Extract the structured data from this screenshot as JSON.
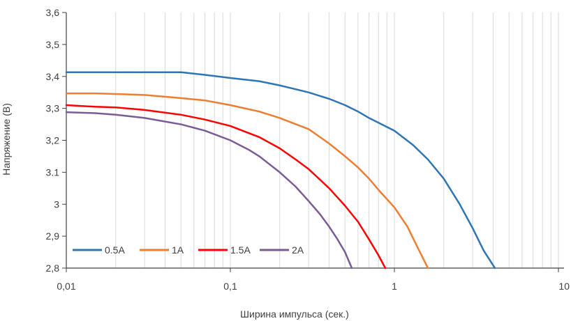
{
  "chart_data": {
    "type": "line",
    "x_scale": "log",
    "xlim": [
      0.01,
      10
    ],
    "ylim": [
      2.8,
      3.6
    ],
    "xlabel": "Ширина импульса (сек.)",
    "ylabel": "Напряжение (В)",
    "x_tick_labels": [
      "0,01",
      "0,1",
      "1",
      "10"
    ],
    "y_tick_labels": [
      "2,8",
      "2,9",
      "3",
      "3.1",
      "3,2",
      "3,3",
      "3,4",
      "3,5",
      "3,6"
    ],
    "grid": "vertical log grid lines",
    "legend_position": "bottom-left",
    "series": [
      {
        "name": "0.5A",
        "color": "#2e75b6",
        "points": [
          [
            0.01,
            3.413
          ],
          [
            0.02,
            3.413
          ],
          [
            0.05,
            3.413
          ],
          [
            0.07,
            3.405
          ],
          [
            0.1,
            3.395
          ],
          [
            0.15,
            3.385
          ],
          [
            0.2,
            3.372
          ],
          [
            0.3,
            3.35
          ],
          [
            0.4,
            3.33
          ],
          [
            0.5,
            3.31
          ],
          [
            0.6,
            3.29
          ],
          [
            0.7,
            3.27
          ],
          [
            0.8,
            3.255
          ],
          [
            1.0,
            3.23
          ],
          [
            1.3,
            3.185
          ],
          [
            1.6,
            3.14
          ],
          [
            2.0,
            3.08
          ],
          [
            2.5,
            3.0
          ],
          [
            3.0,
            2.925
          ],
          [
            3.5,
            2.855
          ],
          [
            4.1,
            2.8
          ]
        ]
      },
      {
        "name": "1A",
        "color": "#ed7d31",
        "points": [
          [
            0.01,
            3.347
          ],
          [
            0.015,
            3.347
          ],
          [
            0.02,
            3.345
          ],
          [
            0.03,
            3.342
          ],
          [
            0.05,
            3.332
          ],
          [
            0.07,
            3.325
          ],
          [
            0.1,
            3.31
          ],
          [
            0.15,
            3.29
          ],
          [
            0.2,
            3.27
          ],
          [
            0.3,
            3.235
          ],
          [
            0.4,
            3.19
          ],
          [
            0.5,
            3.15
          ],
          [
            0.6,
            3.115
          ],
          [
            0.7,
            3.08
          ],
          [
            0.8,
            3.045
          ],
          [
            1.0,
            2.99
          ],
          [
            1.2,
            2.93
          ],
          [
            1.4,
            2.86
          ],
          [
            1.6,
            2.8
          ]
        ]
      },
      {
        "name": "1.5A",
        "color": "#ff0000",
        "points": [
          [
            0.01,
            3.31
          ],
          [
            0.015,
            3.305
          ],
          [
            0.02,
            3.303
          ],
          [
            0.03,
            3.295
          ],
          [
            0.05,
            3.28
          ],
          [
            0.07,
            3.265
          ],
          [
            0.1,
            3.245
          ],
          [
            0.15,
            3.21
          ],
          [
            0.2,
            3.175
          ],
          [
            0.25,
            3.14
          ],
          [
            0.3,
            3.11
          ],
          [
            0.4,
            3.05
          ],
          [
            0.5,
            2.995
          ],
          [
            0.6,
            2.945
          ],
          [
            0.7,
            2.89
          ],
          [
            0.8,
            2.84
          ],
          [
            0.88,
            2.8
          ]
        ]
      },
      {
        "name": "2A",
        "color": "#7b5b96",
        "points": [
          [
            0.01,
            3.288
          ],
          [
            0.015,
            3.285
          ],
          [
            0.02,
            3.28
          ],
          [
            0.03,
            3.27
          ],
          [
            0.05,
            3.25
          ],
          [
            0.07,
            3.23
          ],
          [
            0.1,
            3.2
          ],
          [
            0.13,
            3.17
          ],
          [
            0.15,
            3.15
          ],
          [
            0.2,
            3.1
          ],
          [
            0.25,
            3.055
          ],
          [
            0.3,
            3.01
          ],
          [
            0.35,
            2.97
          ],
          [
            0.4,
            2.93
          ],
          [
            0.45,
            2.89
          ],
          [
            0.5,
            2.85
          ],
          [
            0.55,
            2.8
          ]
        ]
      }
    ]
  }
}
